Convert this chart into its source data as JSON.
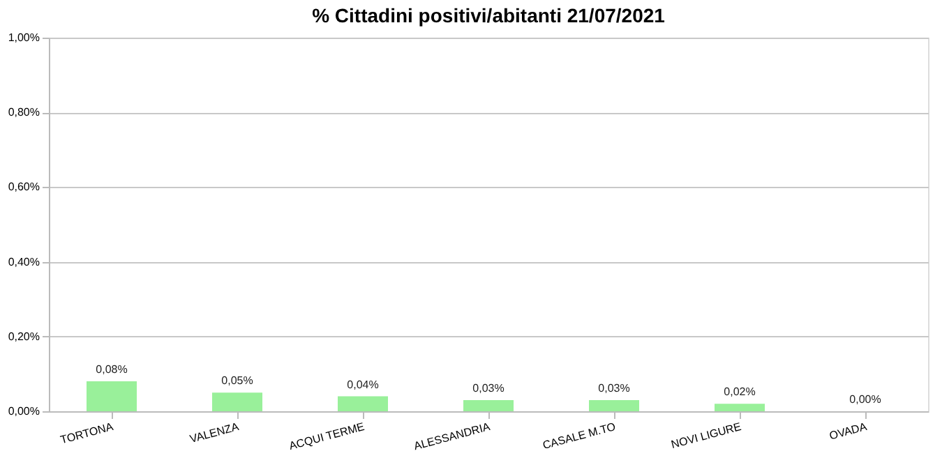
{
  "chart_data": {
    "type": "bar",
    "title": "% Cittadini positivi/abitanti 21/07/2021",
    "categories": [
      "TORTONA",
      "VALENZA",
      "ACQUI TERME",
      "ALESSANDRIA",
      "CASALE M.TO",
      "NOVI LIGURE",
      "OVADA"
    ],
    "values": [
      0.08,
      0.05,
      0.04,
      0.03,
      0.03,
      0.02,
      0.0
    ],
    "value_labels": [
      "0,08%",
      "0,05%",
      "0,04%",
      "0,03%",
      "0,03%",
      "0,02%",
      "0,00%"
    ],
    "color": "#99f09a",
    "ylim": [
      0,
      1
    ],
    "yticks": [
      {
        "value": 0,
        "label": "0,00%"
      },
      {
        "value": 0.2,
        "label": "0,20%"
      },
      {
        "value": 0.4,
        "label": "0,40%"
      },
      {
        "value": 0.6,
        "label": "0,60%"
      },
      {
        "value": 0.8,
        "label": "0,80%"
      },
      {
        "value": 1,
        "label": "1,00%"
      }
    ],
    "grid": "y"
  }
}
